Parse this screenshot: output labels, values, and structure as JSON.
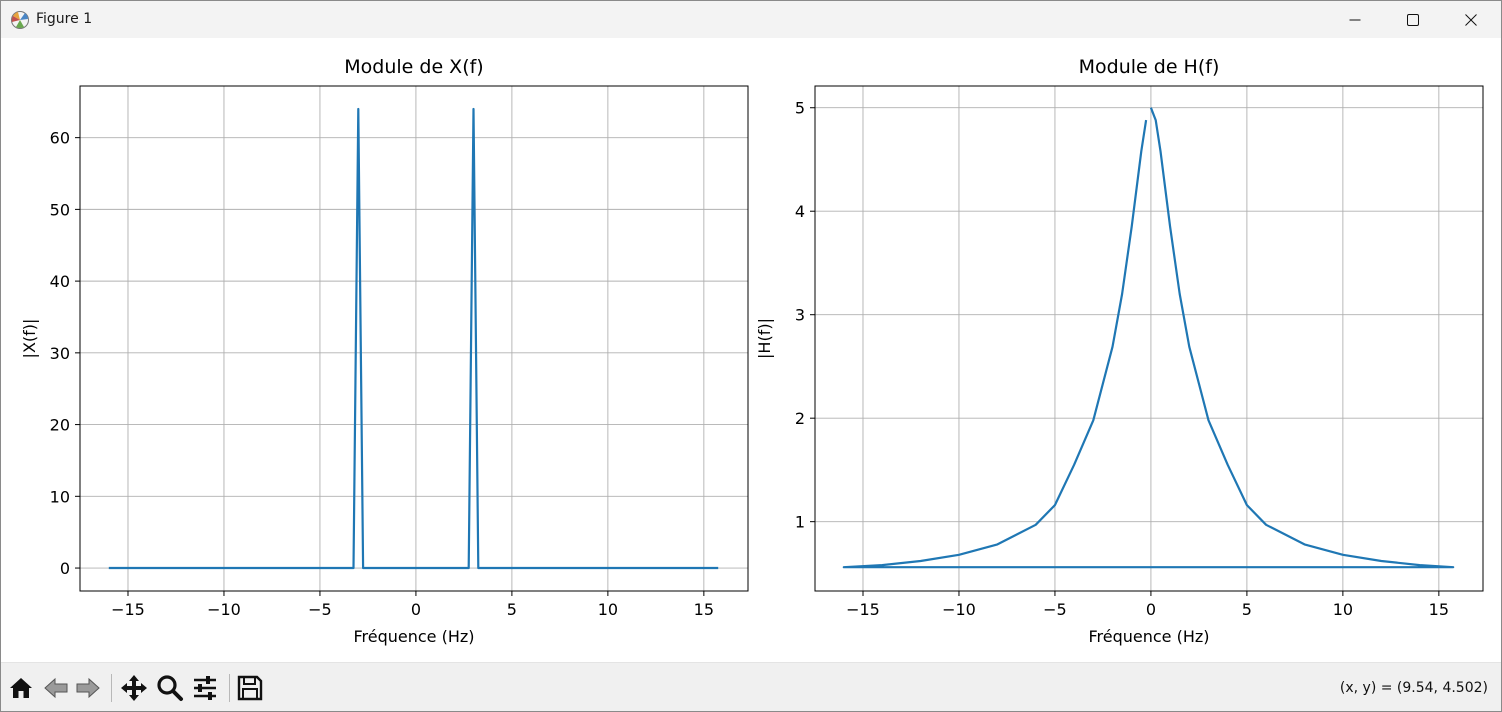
{
  "window": {
    "title": "Figure 1",
    "icon": "matplotlib-icon",
    "controls": [
      "minimize-icon",
      "maximize-icon",
      "close-icon"
    ]
  },
  "toolbar": {
    "tools": [
      "home-icon",
      "back-arrow-icon",
      "forward-arrow-icon",
      "pan-icon",
      "zoom-icon",
      "configure-subplots-icon",
      "save-icon"
    ],
    "coords": "(x, y) = (9.54, 4.502)"
  },
  "chart_data": [
    {
      "type": "line",
      "title": "Module de X(f)",
      "xlabel": "Fréquence (Hz)",
      "ylabel": "|X(f)|",
      "xlim": [
        -17.5,
        17.3
      ],
      "ylim": [
        -3.2,
        67.2
      ],
      "xticks": [
        -15,
        -10,
        -5,
        0,
        5,
        10,
        15
      ],
      "xtick_labels": [
        "−15",
        "−10",
        "−5",
        "0",
        "5",
        "10",
        "15"
      ],
      "yticks": [
        0,
        10,
        20,
        30,
        40,
        50,
        60
      ],
      "ytick_labels": [
        "0",
        "10",
        "20",
        "30",
        "40",
        "50",
        "60"
      ],
      "grid": true,
      "color": "#1f77b4",
      "series": [
        {
          "x": [
            -16.0,
            -3.25,
            -3.0,
            -2.75,
            2.75,
            3.0,
            3.25,
            15.75
          ],
          "y": [
            0,
            0,
            64,
            0,
            0,
            64,
            0,
            0
          ]
        }
      ]
    },
    {
      "type": "line",
      "title": "Module de H(f)",
      "xlabel": "Fréquence (Hz)",
      "ylabel": "|H(f)|",
      "xlim": [
        -17.5,
        17.3
      ],
      "ylim": [
        0.33,
        5.21
      ],
      "xticks": [
        -15,
        -10,
        -5,
        0,
        5,
        10,
        15
      ],
      "xtick_labels": [
        "−15",
        "−10",
        "−5",
        "0",
        "5",
        "10",
        "15"
      ],
      "yticks": [
        1,
        2,
        3,
        4,
        5
      ],
      "ytick_labels": [
        "1",
        "2",
        "3",
        "4",
        "5"
      ],
      "grid": true,
      "color": "#1f77b4",
      "series": [
        {
          "x": [
            0,
            0.25,
            0.5,
            1,
            1.5,
            2,
            3,
            4,
            5,
            6,
            8,
            10,
            12,
            14,
            15.75,
            15.75,
            -16.0,
            -16.0,
            -14,
            -12,
            -10,
            -8,
            -6,
            -5,
            -4,
            -3,
            -2,
            -1.5,
            -1,
            -0.5,
            -0.25
          ],
          "y": [
            5.0,
            4.88,
            4.58,
            3.85,
            3.2,
            2.69,
            1.98,
            1.55,
            1.16,
            0.97,
            0.78,
            0.68,
            0.62,
            0.58,
            0.56,
            0.56,
            0.56,
            0.56,
            0.58,
            0.62,
            0.68,
            0.78,
            0.97,
            1.16,
            1.55,
            1.98,
            2.69,
            3.2,
            3.85,
            4.58,
            4.88
          ]
        }
      ]
    }
  ]
}
